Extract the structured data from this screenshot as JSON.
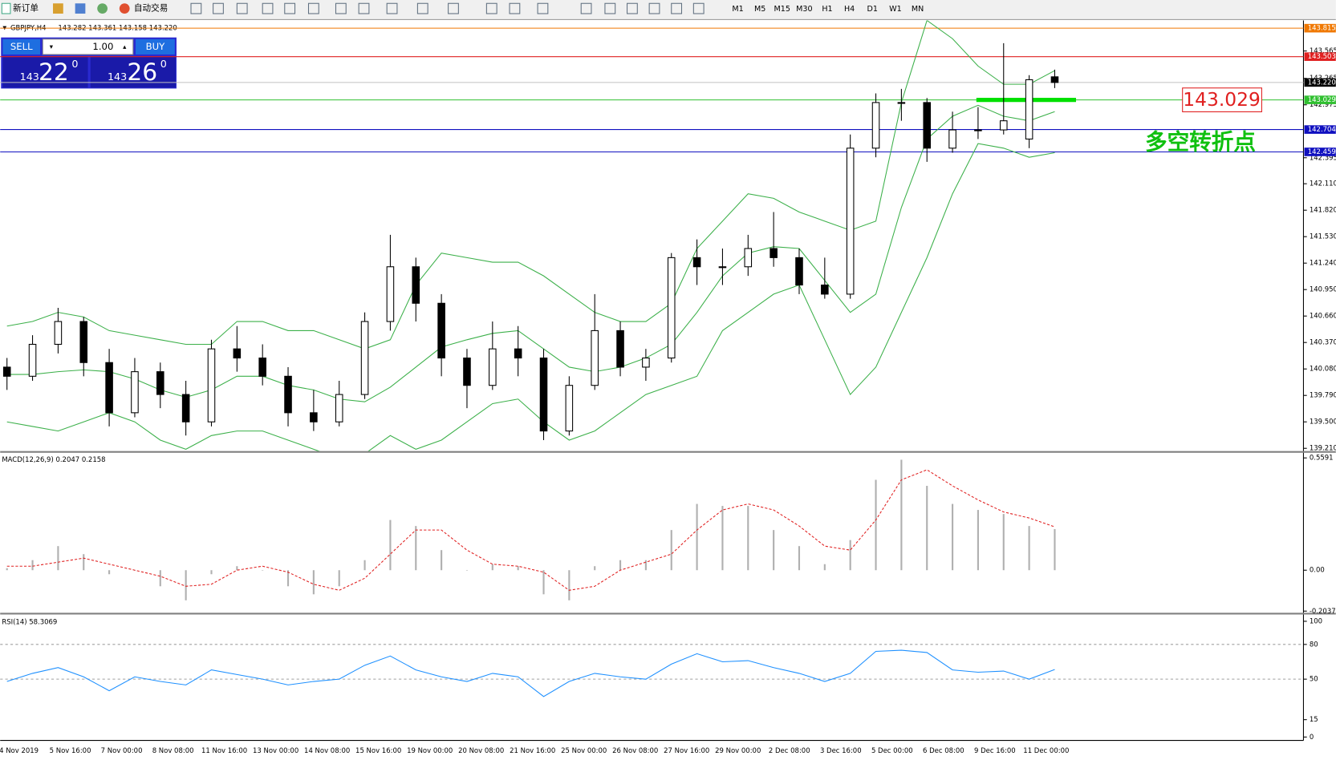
{
  "toolbar": {
    "new_order": "新订单",
    "auto_trading": "自动交易",
    "timeframes": [
      "M1",
      "M5",
      "M15",
      "M30",
      "H1",
      "H4",
      "D1",
      "W1",
      "MN"
    ]
  },
  "trade_panel": {
    "sell": "SELL",
    "buy": "BUY",
    "lot": "1.00",
    "sell_prefix": "143",
    "sell_main": "22",
    "sell_sup": "0",
    "buy_prefix": "143",
    "buy_main": "26",
    "buy_sup": "0"
  },
  "chart_data": {
    "type": "candlestick",
    "title": "GBPJPY,H4",
    "quote": "143.282 143.361 143.158 143.220",
    "ylim": [
      139.18,
      143.9
    ],
    "yticks": [
      143.565,
      143.265,
      142.975,
      142.395,
      {
        "value": 142.11,
        "label": "142.110"
      },
      {
        "value": 141.82,
        "label": "141.820"
      },
      {
        "value": 141.53,
        "label": "141.530"
      },
      {
        "value": 141.24,
        "label": "141.240"
      },
      {
        "value": 140.95,
        "label": "140.950"
      },
      {
        "value": 140.66,
        "label": "140.660"
      },
      {
        "value": 140.37,
        "label": "140.370"
      },
      {
        "value": 140.08,
        "label": "140.080"
      },
      {
        "value": 139.79,
        "label": "139.790"
      },
      {
        "value": 139.5,
        "label": "139.500"
      },
      {
        "value": 139.21,
        "label": "139.210"
      }
    ],
    "levels": [
      {
        "value": 143.815,
        "color": "#f07800"
      },
      {
        "value": 143.503,
        "color": "#e02020"
      },
      {
        "value": 143.22,
        "label": "143.220",
        "color": "#000000"
      },
      {
        "value": 143.029,
        "color": "#30c030"
      },
      {
        "value": 142.704,
        "color": "#1010c0"
      },
      {
        "value": 142.459,
        "color": "#1010c0"
      }
    ],
    "annotation": "多空转折点",
    "ohlc": [
      [
        140.1,
        140.2,
        139.85,
        140.0
      ],
      [
        140.0,
        140.45,
        139.95,
        140.35
      ],
      [
        140.35,
        140.75,
        140.25,
        140.6
      ],
      [
        140.6,
        140.65,
        140.0,
        140.15
      ],
      [
        140.15,
        140.3,
        139.45,
        139.6
      ],
      [
        139.6,
        140.2,
        139.55,
        140.05
      ],
      [
        140.05,
        140.15,
        139.65,
        139.8
      ],
      [
        139.8,
        139.95,
        139.35,
        139.5
      ],
      [
        139.5,
        140.4,
        139.45,
        140.3
      ],
      [
        140.3,
        140.55,
        140.05,
        140.2
      ],
      [
        140.2,
        140.35,
        139.9,
        140.0
      ],
      [
        140.0,
        140.1,
        139.45,
        139.6
      ],
      [
        139.6,
        139.85,
        139.4,
        139.5
      ],
      [
        139.5,
        139.95,
        139.45,
        139.8
      ],
      [
        139.8,
        140.7,
        139.75,
        140.6
      ],
      [
        140.6,
        141.55,
        140.5,
        141.2
      ],
      [
        141.2,
        141.3,
        140.6,
        140.8
      ],
      [
        140.8,
        140.9,
        140.0,
        140.2
      ],
      [
        140.2,
        140.3,
        139.65,
        139.9
      ],
      [
        139.9,
        140.6,
        139.85,
        140.3
      ],
      [
        140.3,
        140.55,
        140.0,
        140.2
      ],
      [
        140.2,
        140.3,
        139.3,
        139.4
      ],
      [
        139.4,
        140.0,
        139.35,
        139.9
      ],
      [
        139.9,
        140.9,
        139.85,
        140.5
      ],
      [
        140.5,
        140.6,
        140.0,
        140.1
      ],
      [
        140.1,
        140.3,
        139.95,
        140.2
      ],
      [
        140.2,
        141.35,
        140.15,
        141.3
      ],
      [
        141.3,
        141.5,
        141.0,
        141.2
      ],
      [
        141.2,
        141.4,
        141.0,
        141.2
      ],
      [
        141.2,
        141.55,
        141.1,
        141.4
      ],
      [
        141.4,
        141.8,
        141.2,
        141.3
      ],
      [
        141.3,
        141.4,
        140.9,
        141.0
      ],
      [
        141.0,
        141.3,
        140.85,
        140.9
      ],
      [
        140.9,
        142.65,
        140.85,
        142.5
      ],
      [
        142.5,
        143.1,
        142.4,
        143.0
      ],
      [
        143.0,
        143.15,
        142.8,
        143.0
      ],
      [
        143.0,
        143.05,
        142.35,
        142.5
      ],
      [
        142.5,
        142.9,
        142.45,
        142.7
      ],
      [
        142.7,
        142.95,
        142.6,
        142.7
      ],
      [
        142.7,
        143.65,
        142.65,
        142.8
      ],
      [
        142.6,
        143.3,
        142.5,
        143.25
      ],
      [
        143.282,
        143.361,
        143.158,
        143.22
      ]
    ],
    "bands": {
      "color": "#3cb04a",
      "upper": [
        140.55,
        140.6,
        140.7,
        140.65,
        140.5,
        140.45,
        140.4,
        140.35,
        140.35,
        140.6,
        140.6,
        140.5,
        140.5,
        140.4,
        140.3,
        140.4,
        141.0,
        141.35,
        141.3,
        141.25,
        141.25,
        141.1,
        140.9,
        140.7,
        140.6,
        140.6,
        140.8,
        141.4,
        141.7,
        142.0,
        141.95,
        141.8,
        141.7,
        141.6,
        141.7,
        143.0,
        143.9,
        143.7,
        143.4,
        143.2,
        143.2,
        143.35
      ],
      "middle": [
        140.02,
        140.02,
        140.05,
        140.07,
        140.05,
        139.97,
        139.85,
        139.77,
        139.85,
        140.0,
        140.0,
        139.9,
        139.85,
        139.75,
        139.72,
        139.88,
        140.1,
        140.32,
        140.4,
        140.47,
        140.5,
        140.3,
        140.1,
        140.05,
        140.1,
        140.2,
        140.35,
        140.7,
        141.1,
        141.35,
        141.42,
        141.4,
        141.05,
        140.7,
        140.9,
        141.85,
        142.6,
        142.85,
        142.97,
        142.85,
        142.8,
        142.9
      ],
      "lower": [
        139.5,
        139.45,
        139.4,
        139.5,
        139.6,
        139.5,
        139.3,
        139.2,
        139.35,
        139.4,
        139.4,
        139.3,
        139.2,
        139.1,
        139.15,
        139.35,
        139.2,
        139.3,
        139.5,
        139.7,
        139.75,
        139.5,
        139.3,
        139.4,
        139.6,
        139.8,
        139.9,
        140.0,
        140.5,
        140.7,
        140.9,
        141.0,
        140.4,
        139.8,
        140.1,
        140.7,
        141.3,
        142.0,
        142.55,
        142.5,
        142.4,
        142.45
      ]
    },
    "time_labels": [
      "4 Nov 2019",
      "5 Nov 16:00",
      "7 Nov 00:00",
      "8 Nov 08:00",
      "11 Nov 16:00",
      "13 Nov 00:00",
      "14 Nov 08:00",
      "15 Nov 16:00",
      "19 Nov 00:00",
      "20 Nov 08:00",
      "21 Nov 16:00",
      "25 Nov 00:00",
      "26 Nov 08:00",
      "27 Nov 16:00",
      "29 Nov 00:00",
      "2 Dec 08:00",
      "3 Dec 16:00",
      "5 Dec 00:00",
      "6 Dec 08:00",
      "9 Dec 16:00",
      "11 Dec 00:00"
    ],
    "macd": {
      "label": "MACD(12,26,9) 0.2047 0.2158",
      "ylim": [
        -0.212,
        0.5805
      ],
      "yticks": [
        0.5591,
        {
          "value": 0,
          "label": "0.00"
        },
        -0.2037
      ],
      "hist_color": "#b0b0b0",
      "signal_color": "#e02020",
      "hist": [
        0.01,
        0.05,
        0.12,
        0.08,
        -0.02,
        0.0,
        -0.08,
        -0.15,
        -0.02,
        0.02,
        0.0,
        -0.08,
        -0.12,
        -0.08,
        0.05,
        0.25,
        0.22,
        0.1,
        0.0,
        0.03,
        0.02,
        -0.12,
        -0.15,
        0.02,
        0.05,
        0.05,
        0.2,
        0.33,
        0.32,
        0.32,
        0.2,
        0.12,
        0.03,
        0.15,
        0.45,
        0.55,
        0.42,
        0.33,
        0.3,
        0.28,
        0.22,
        0.2047
      ],
      "signal": [
        0.02,
        0.02,
        0.04,
        0.06,
        0.03,
        0.0,
        -0.03,
        -0.08,
        -0.07,
        0.0,
        0.02,
        -0.01,
        -0.07,
        -0.1,
        -0.04,
        0.08,
        0.2,
        0.2,
        0.1,
        0.03,
        0.02,
        -0.01,
        -0.1,
        -0.08,
        0.0,
        0.04,
        0.08,
        0.2,
        0.3,
        0.33,
        0.3,
        0.22,
        0.12,
        0.1,
        0.25,
        0.45,
        0.5,
        0.42,
        0.35,
        0.29,
        0.26,
        0.2158
      ]
    },
    "rsi": {
      "label": "RSI(14) 58.3069",
      "ylim": [
        0,
        100
      ],
      "yticks": [
        100,
        80,
        50,
        15,
        0
      ],
      "color": "#1e90ff",
      "values": [
        48,
        55,
        60,
        52,
        40,
        52,
        48,
        45,
        58,
        54,
        50,
        45,
        48,
        50,
        62,
        70,
        58,
        52,
        48,
        55,
        52,
        35,
        48,
        55,
        52,
        50,
        63,
        72,
        65,
        66,
        60,
        55,
        48,
        55,
        74,
        75,
        73,
        58,
        56,
        57,
        50,
        58.3069
      ]
    }
  }
}
